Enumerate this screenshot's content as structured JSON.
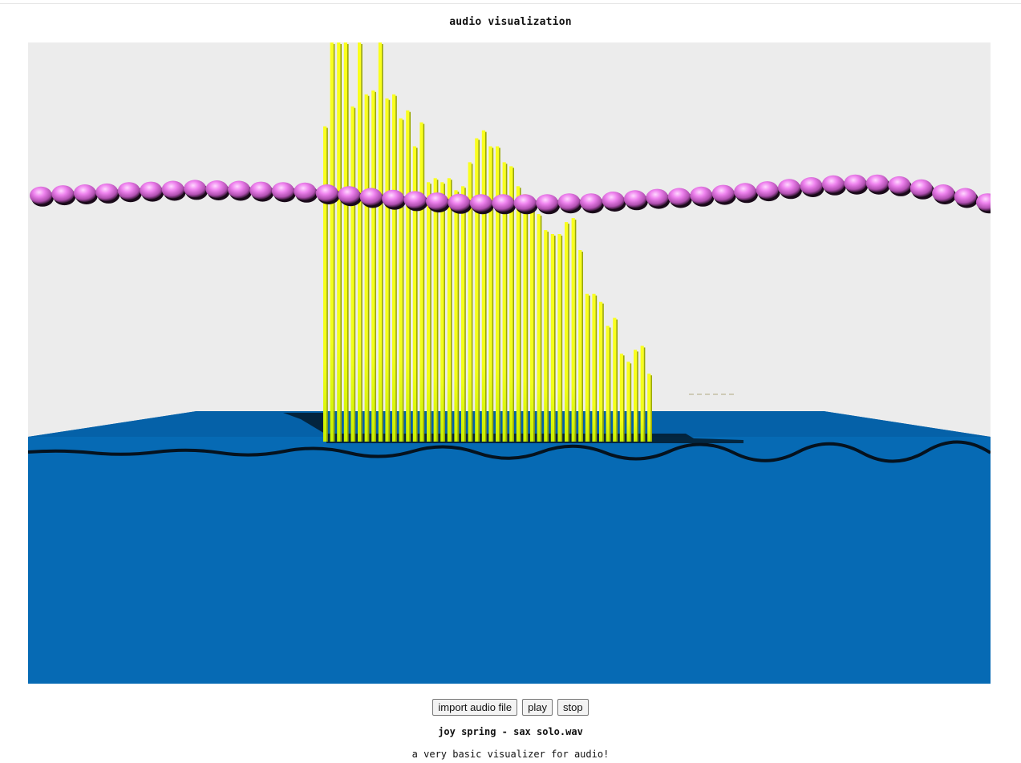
{
  "page": {
    "title": "audio visualization",
    "caption": "a very basic visualizer for audio!"
  },
  "controls": {
    "import_label": "import audio file",
    "play_label": "play",
    "stop_label": "stop"
  },
  "track": {
    "filename": "joy spring - sax solo.wav"
  },
  "scene": {
    "sky_color": "#ececec",
    "floor_color": "#066ab4",
    "bar_color": "#faff1e",
    "sphere_color": "#ee82ee",
    "bar_levels": [
      0.79,
      1.0,
      1.0,
      1.0,
      0.84,
      1.0,
      0.87,
      0.88,
      1.0,
      0.86,
      0.87,
      0.81,
      0.83,
      0.74,
      0.8,
      0.65,
      0.66,
      0.65,
      0.66,
      0.63,
      0.64,
      0.7,
      0.76,
      0.78,
      0.74,
      0.74,
      0.7,
      0.69,
      0.64,
      0.62,
      0.59,
      0.57,
      0.53,
      0.52,
      0.52,
      0.55,
      0.56,
      0.48,
      0.37,
      0.37,
      0.35,
      0.29,
      0.31,
      0.22,
      0.2,
      0.23,
      0.24,
      0.17
    ],
    "sphere_wave": [
      0.45,
      0.48,
      0.5,
      0.52,
      0.55,
      0.56,
      0.58,
      0.6,
      0.59,
      0.58,
      0.56,
      0.55,
      0.54,
      0.5,
      0.46,
      0.42,
      0.38,
      0.35,
      0.32,
      0.29,
      0.28,
      0.28,
      0.28,
      0.28,
      0.3,
      0.3,
      0.34,
      0.37,
      0.4,
      0.42,
      0.45,
      0.49,
      0.53,
      0.57,
      0.62,
      0.66,
      0.7,
      0.72,
      0.72,
      0.68,
      0.61,
      0.5,
      0.42,
      0.3
    ]
  }
}
